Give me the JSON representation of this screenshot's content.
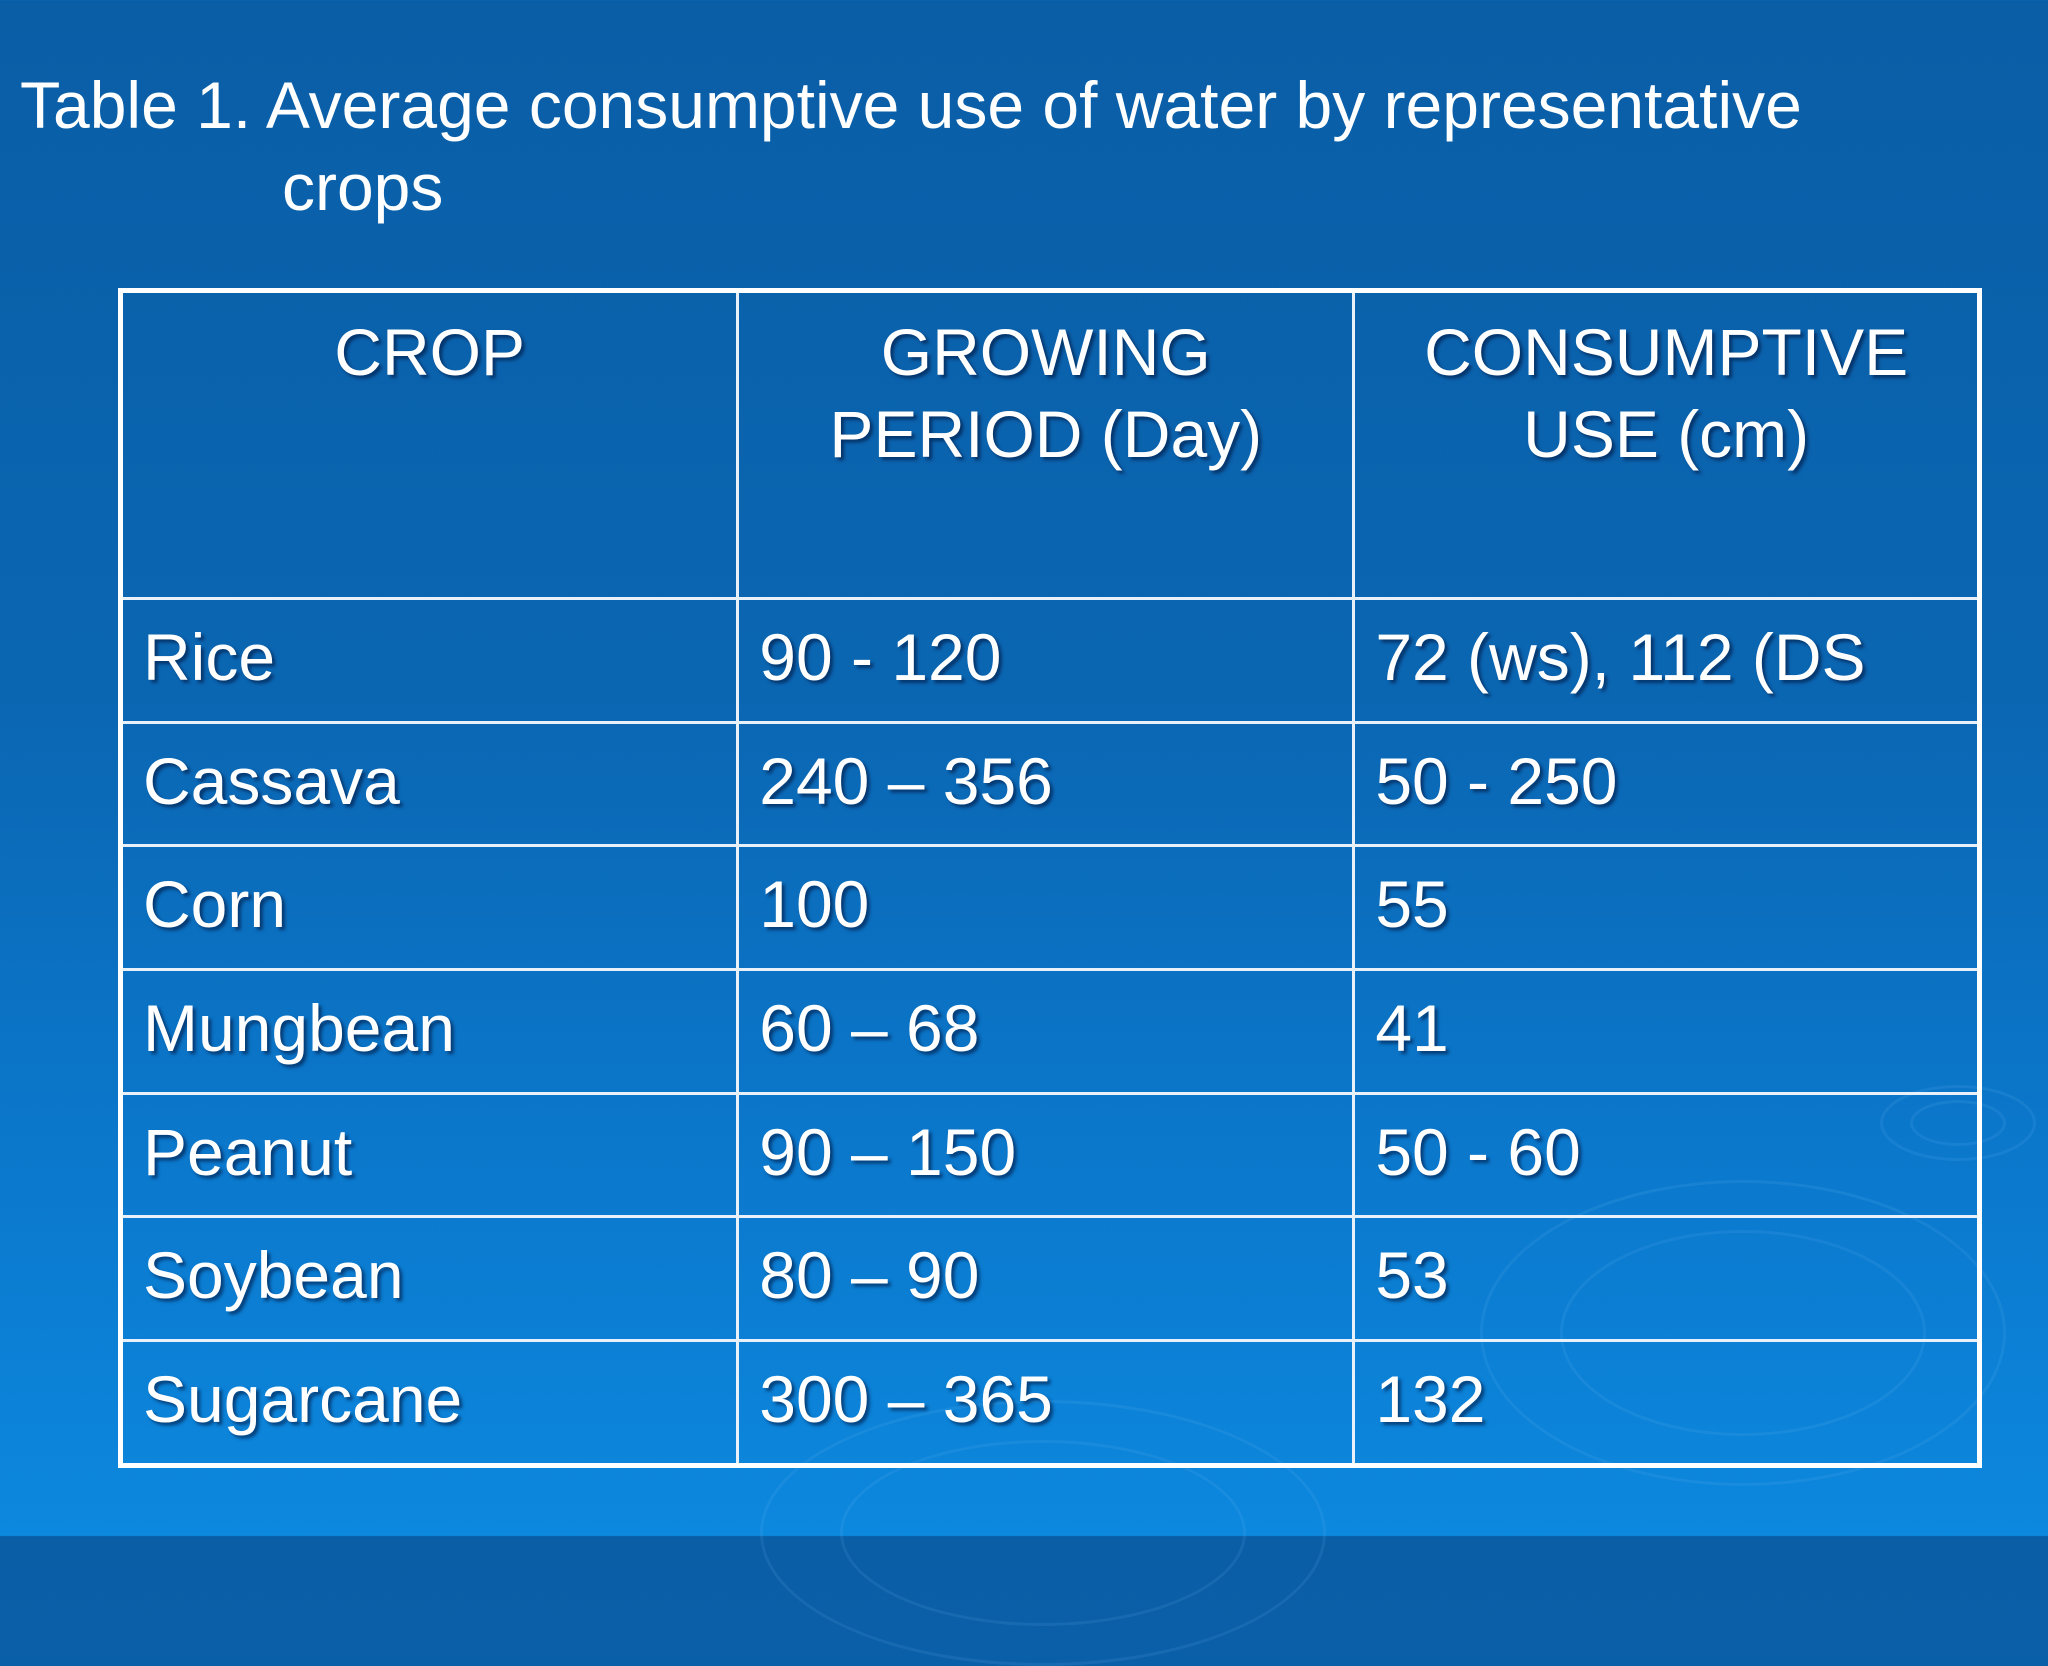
{
  "title": {
    "line1": "Table 1. Average consumptive use of water by representative",
    "line2": "crops"
  },
  "table": {
    "headers": {
      "crop": "CROP",
      "period_line1": "GROWING",
      "period_line2": "PERIOD (Day)",
      "use_line1": "CONSUMPTIVE",
      "use_line2": "USE (cm)"
    },
    "rows": [
      {
        "crop": "Rice",
        "period": "90 - 120",
        "use": "72 (ws), 112 (DS"
      },
      {
        "crop": "Cassava",
        "period": "240 – 356",
        "use": "50 - 250"
      },
      {
        "crop": "Corn",
        "period": "100",
        "use": "55"
      },
      {
        "crop": "Mungbean",
        "period": "60 – 68",
        "use": "41"
      },
      {
        "crop": "Peanut",
        "period": "90 – 150",
        "use": "50 - 60"
      },
      {
        "crop": "Soybean",
        "period": "80 – 90",
        "use": "53"
      },
      {
        "crop": "Sugarcane",
        "period": "300 – 365",
        "use": "132"
      }
    ]
  }
}
